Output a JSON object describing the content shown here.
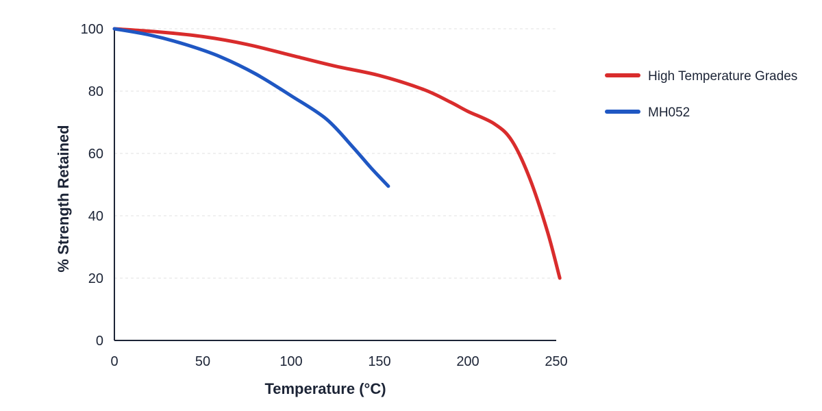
{
  "chart_data": {
    "type": "line",
    "title": "",
    "xlabel": "Temperature (°C)",
    "ylabel": "% Strength Retained",
    "xlim": [
      0,
      250
    ],
    "ylim": [
      0,
      100
    ],
    "xticks": [
      0,
      50,
      100,
      150,
      200,
      250
    ],
    "yticks": [
      0,
      20,
      40,
      60,
      80,
      100
    ],
    "grid": true,
    "legend_position": "right",
    "series": [
      {
        "name": "High Temperature Grades",
        "color": "#d92c2c",
        "x": [
          0,
          25,
          50,
          75,
          100,
          125,
          150,
          175,
          190,
          200,
          215,
          225,
          235,
          245,
          252
        ],
        "y": [
          100,
          99,
          97.5,
          95,
          91.5,
          88,
          85,
          80.5,
          76.5,
          73.5,
          69.5,
          64,
          52,
          35,
          20
        ]
      },
      {
        "name": "MH052",
        "color": "#1f57c3",
        "x": [
          0,
          20,
          40,
          60,
          80,
          100,
          120,
          135,
          145,
          155
        ],
        "y": [
          100,
          98,
          95,
          91,
          85.5,
          78.5,
          71,
          62,
          55.5,
          49.5
        ]
      }
    ]
  }
}
